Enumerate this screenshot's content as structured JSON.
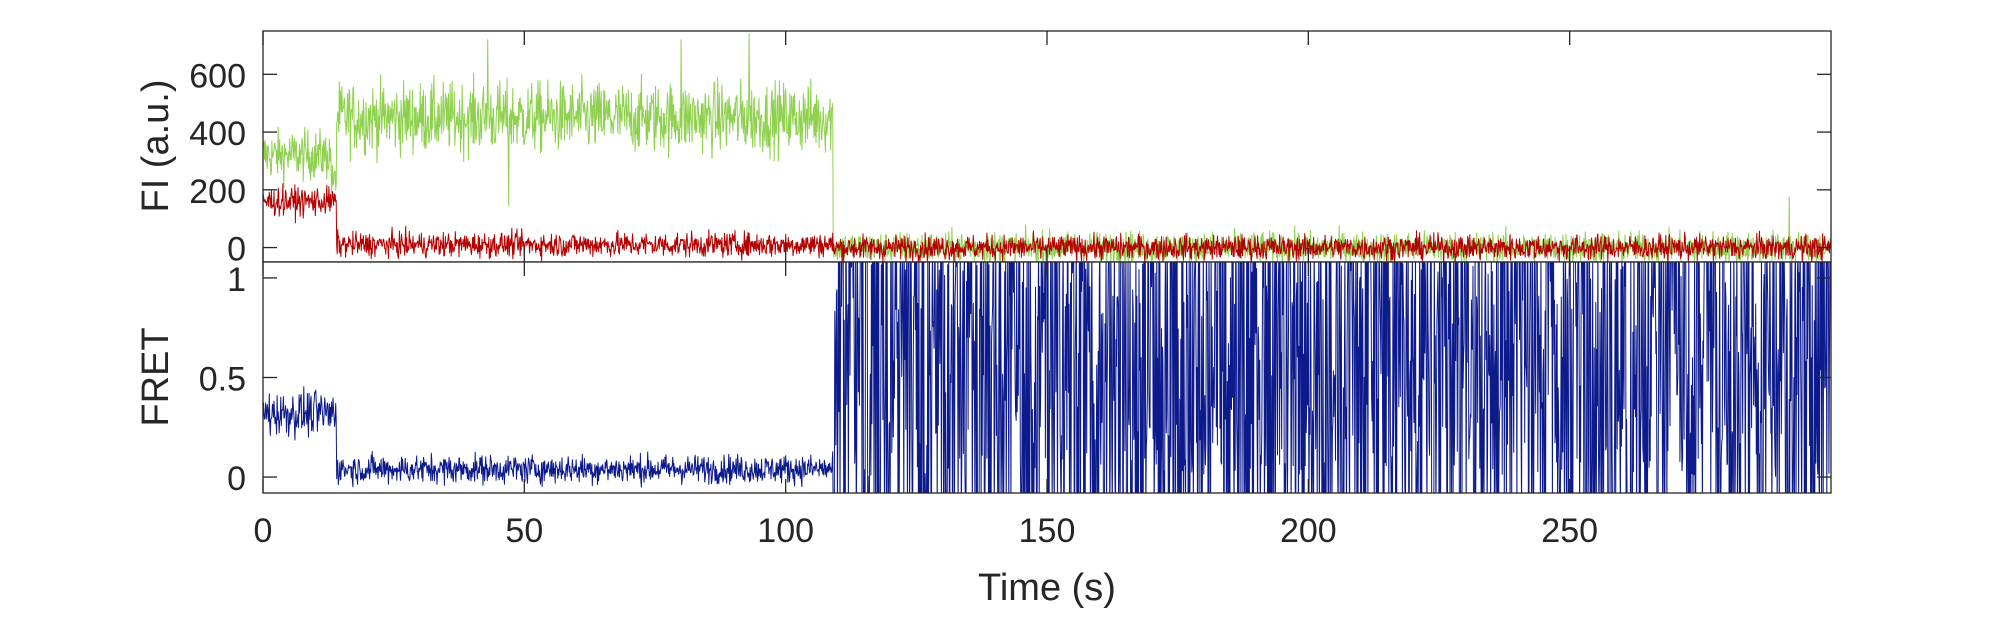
{
  "chart_data": [
    {
      "type": "line",
      "panel": "top",
      "ylabel": "FI (a.u.)",
      "xlim": [
        0,
        300
      ],
      "ylim": [
        -50,
        750
      ],
      "yticks": [
        0,
        200,
        400,
        600
      ],
      "ytick_labels": [
        "0",
        "200",
        "400",
        "600"
      ],
      "grid": false,
      "series": [
        {
          "color": "#8fd14f",
          "segments": [
            {
              "x0": 0,
              "x1": 13,
              "mean": 320,
              "noise": 60
            },
            {
              "x0": 13,
              "x1": 14,
              "mean": 230,
              "noise": 40
            },
            {
              "x0": 14,
              "x1": 109,
              "mean": 450,
              "noise": 85
            },
            {
              "x0": 109,
              "x1": 300,
              "mean": 0,
              "noise": 38
            }
          ],
          "spikes": [
            {
              "x": 93,
              "y": 740
            },
            {
              "x": 80,
              "y": 720
            },
            {
              "x": 43,
              "y": 720
            },
            {
              "x": 47,
              "y": 145
            },
            {
              "x": 292,
              "y": 175
            }
          ]
        },
        {
          "color": "#b40000",
          "segments": [
            {
              "x0": 0,
              "x1": 14,
              "mean": 160,
              "noise": 35
            },
            {
              "x0": 14,
              "x1": 109,
              "mean": 10,
              "noise": 30
            },
            {
              "x0": 109,
              "x1": 300,
              "mean": 0,
              "noise": 30
            }
          ],
          "spikes": []
        }
      ]
    },
    {
      "type": "line",
      "panel": "bottom",
      "ylabel": "FRET",
      "xlabel": "Time (s)",
      "xlim": [
        0,
        300
      ],
      "ylim": [
        -0.08,
        1.08
      ],
      "yticks": [
        0,
        0.5,
        1
      ],
      "ytick_labels": [
        "0",
        "0.5",
        "1"
      ],
      "xticks": [
        0,
        50,
        100,
        150,
        200,
        250
      ],
      "xtick_labels": [
        "0",
        "50",
        "100",
        "150",
        "200",
        "250"
      ],
      "grid": false,
      "series": [
        {
          "color": "#0d1a8c",
          "segments": [
            {
              "x0": 0,
              "x1": 14,
              "mean": 0.32,
              "noise": 0.08
            },
            {
              "x0": 14,
              "x1": 109,
              "mean": 0.04,
              "noise": 0.05
            },
            {
              "x0": 109,
              "x1": 300,
              "mean": 0.5,
              "noise": 0.9
            }
          ],
          "spikes": []
        }
      ]
    }
  ]
}
